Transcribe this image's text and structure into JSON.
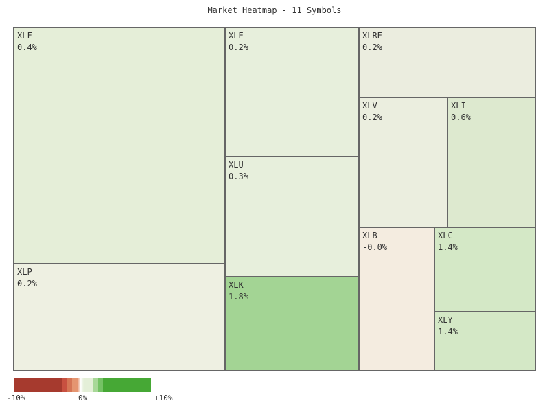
{
  "chart_data": {
    "type": "heatmap",
    "title": "Market Heatmap - 11 Symbols",
    "tiles": [
      {
        "symbol": "XLF",
        "change": "0.4%",
        "color": "#e5eed8"
      },
      {
        "symbol": "XLP",
        "change": "0.2%",
        "color": "#eef0e2"
      },
      {
        "symbol": "XLE",
        "change": "0.2%",
        "color": "#e7efdc"
      },
      {
        "symbol": "XLU",
        "change": "0.3%",
        "color": "#e7efdc"
      },
      {
        "symbol": "XLK",
        "change": "1.8%",
        "color": "#a3d494"
      },
      {
        "symbol": "XLRE",
        "change": "0.2%",
        "color": "#ebeddf"
      },
      {
        "symbol": "XLV",
        "change": "0.2%",
        "color": "#ebeedf"
      },
      {
        "symbol": "XLI",
        "change": "0.6%",
        "color": "#dde9cf"
      },
      {
        "symbol": "XLB",
        "change": "-0.0%",
        "color": "#f4ece0"
      },
      {
        "symbol": "XLC",
        "change": "1.4%",
        "color": "#d4e8c6"
      },
      {
        "symbol": "XLY",
        "change": "1.4%",
        "color": "#d4e8c6"
      }
    ],
    "legend": {
      "ticks": [
        "-10%",
        "0%",
        "+10%"
      ],
      "range": [
        -10,
        10
      ],
      "colors": [
        "#a63a2e",
        "#c85040",
        "#d57555",
        "#e59570",
        "#ffffff",
        "#e4efd8",
        "#a8d898",
        "#75c265",
        "#46a835"
      ]
    }
  }
}
